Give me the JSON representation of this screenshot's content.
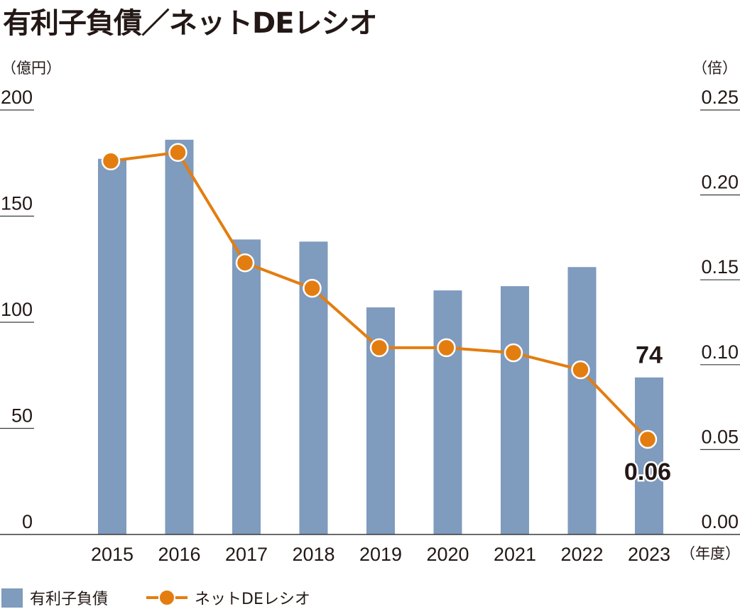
{
  "title": "有利子負債／ネットDEレシオ",
  "units": {
    "left": "（億円）",
    "right": "（倍）",
    "x": "（年度）"
  },
  "colors": {
    "bar": "#7f9bbd",
    "line": "#e37d10",
    "text": "#231815",
    "axis": "#3a3a3a"
  },
  "legend": {
    "bar_label": "有利子負債",
    "line_label": "ネットDEレシオ"
  },
  "chart_data": {
    "type": "bar+line",
    "categories": [
      "2015",
      "2016",
      "2017",
      "2018",
      "2019",
      "2020",
      "2021",
      "2022",
      "2023"
    ],
    "series": [
      {
        "name": "有利子負債",
        "type": "bar",
        "axis": "left",
        "values": [
          177,
          186,
          139,
          138,
          107,
          115,
          117,
          126,
          74
        ]
      },
      {
        "name": "ネットDEレシオ",
        "type": "line",
        "axis": "right",
        "values": [
          0.22,
          0.225,
          0.16,
          0.145,
          0.11,
          0.11,
          0.107,
          0.097,
          0.056
        ]
      }
    ],
    "left_axis": {
      "ylim": [
        0,
        200
      ],
      "ticks": [
        "0",
        "50",
        "100",
        "150",
        "200"
      ]
    },
    "right_axis": {
      "ylim": [
        0,
        0.25
      ],
      "ticks": [
        "0.00",
        "0.05",
        "0.10",
        "0.15",
        "0.20",
        "0.25"
      ]
    },
    "annotations": [
      {
        "text": "74",
        "series": "有利子負債",
        "category": "2023"
      },
      {
        "text": "0.06",
        "series": "ネットDEレシオ",
        "category": "2023"
      }
    ],
    "grid": false,
    "legend_position": "bottom-left"
  }
}
